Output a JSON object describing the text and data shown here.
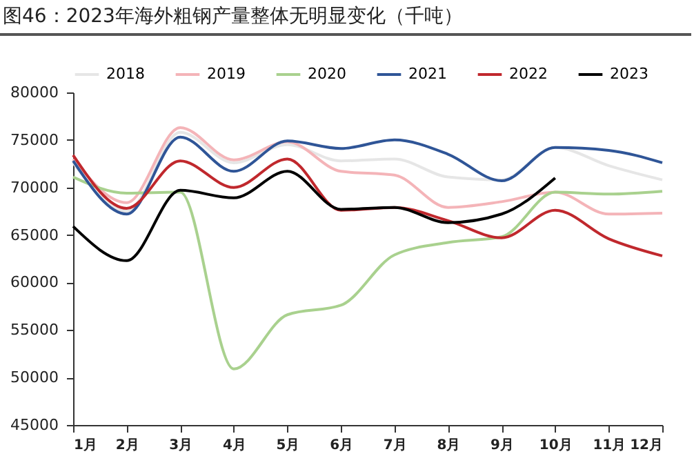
{
  "chart_data": {
    "type": "line",
    "title": "图46：2023年海外粗钢产量整体无明显变化（千吨）",
    "categories": [
      "1月",
      "2月",
      "3月",
      "4月",
      "5月",
      "6月",
      "7月",
      "8月",
      "9月",
      "10月",
      "11月",
      "12月"
    ],
    "series": [
      {
        "name": "2018",
        "color": "#e6e6e6",
        "values": [
          72600,
          67500,
          75800,
          72600,
          74500,
          72800,
          73000,
          71100,
          70800,
          74200,
          72300,
          70800
        ]
      },
      {
        "name": "2019",
        "color": "#f4b4b8",
        "values": [
          73000,
          68400,
          76300,
          72900,
          74800,
          71700,
          71300,
          67900,
          68500,
          69500,
          67200,
          67300
        ]
      },
      {
        "name": "2020",
        "color": "#a9d18e",
        "values": [
          71100,
          69400,
          69500,
          50900,
          56600,
          57600,
          62900,
          64200,
          64800,
          69500,
          69300,
          69600
        ]
      },
      {
        "name": "2021",
        "color": "#2f5597",
        "values": [
          72800,
          67200,
          75300,
          71700,
          74900,
          74100,
          75000,
          73500,
          70700,
          74200,
          73900,
          72600
        ]
      },
      {
        "name": "2022",
        "color": "#c0282d",
        "values": [
          73400,
          67800,
          72800,
          70000,
          73000,
          67600,
          67900,
          66500,
          64700,
          67600,
          64600,
          62800
        ]
      },
      {
        "name": "2023",
        "color": "#000000",
        "values": [
          65900,
          62300,
          69700,
          68900,
          71700,
          67700,
          67900,
          66300,
          67200,
          71000,
          null,
          null
        ]
      }
    ],
    "ylim": [
      45000,
      80000
    ],
    "yticks": [
      45000,
      50000,
      55000,
      60000,
      65000,
      70000,
      75000,
      80000
    ],
    "grid": false,
    "legend": "top",
    "marker": "none",
    "line_style": "solid"
  }
}
